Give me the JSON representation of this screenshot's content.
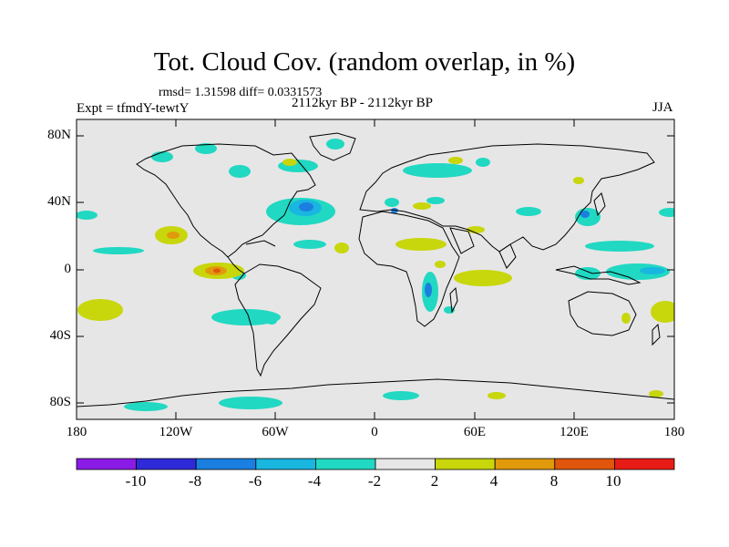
{
  "title": "Tot. Cloud Cov. (random overlap, in %)",
  "stats": "rmsd= 1.31598  diff= 0.0331573",
  "left_label": "Expt = tfmdY-tewtY",
  "center_label": "2112kyr BP - 2112kyr BP",
  "right_label": "JJA",
  "y_ticks": [
    "80N",
    "40N",
    "0",
    "40S",
    "80S"
  ],
  "x_ticks": [
    "180",
    "120W",
    "60W",
    "0",
    "60E",
    "120E",
    "180"
  ],
  "colorbar": {
    "labels": [
      "-10",
      "-8",
      "-6",
      "-4",
      "-2",
      "2",
      "4",
      "8",
      "10"
    ],
    "colors": [
      "#8a1be6",
      "#2e2ad8",
      "#1a7fe0",
      "#19b6e0",
      "#21d8c2",
      "#e6e6e6",
      "#c8d60c",
      "#e09a0c",
      "#e0560c",
      "#e81c16"
    ]
  },
  "colors": {
    "background": "#e6e6e6",
    "coast": "#000000"
  }
}
